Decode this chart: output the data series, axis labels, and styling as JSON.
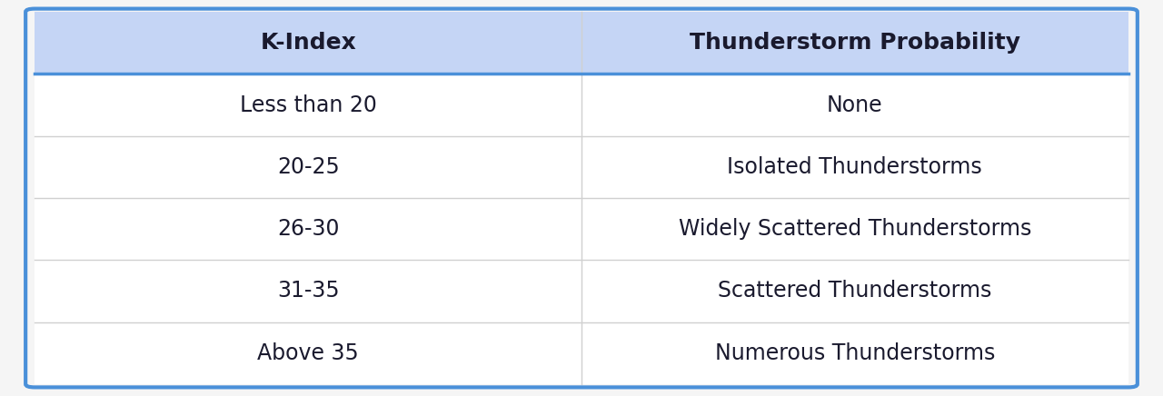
{
  "headers": [
    "K-Index",
    "Thunderstorm Probability"
  ],
  "rows": [
    [
      "Less than 20",
      "None"
    ],
    [
      "20-25",
      "Isolated Thunderstorms"
    ],
    [
      "26-30",
      "Widely Scattered Thunderstorms"
    ],
    [
      "31-35",
      "Scattered Thunderstorms"
    ],
    [
      "Above 35",
      "Numerous Thunderstorms"
    ]
  ],
  "header_bg_color": "#c5d5f5",
  "header_text_color": "#1a1a2e",
  "row_bg_color": "#ffffff",
  "row_text_color": "#1a1a2e",
  "divider_color": "#d0d0d0",
  "border_color": "#4a90d9",
  "outer_bg_color": "#f5f5f5",
  "header_fontsize": 18,
  "row_fontsize": 17,
  "col_split": 0.5
}
